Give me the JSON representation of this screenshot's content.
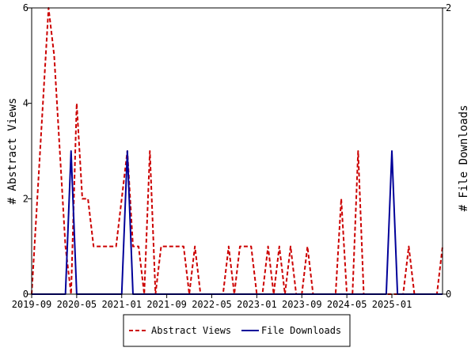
{
  "chart_data": {
    "type": "line",
    "x_ticks": [
      "2019-09",
      "2020-05",
      "2021-01",
      "2021-09",
      "2022-05",
      "2023-01",
      "2023-09",
      "2024-05",
      "2025-01"
    ],
    "x_range": [
      "2019-09",
      "2025-10"
    ],
    "y_left": {
      "label": "# Abstract Views",
      "ticks": [
        "0",
        "2",
        "4",
        "6"
      ],
      "range": [
        0,
        6
      ]
    },
    "y_right": {
      "label": "# File Downloads",
      "ticks": [
        "0",
        "2"
      ],
      "range": [
        0,
        2
      ]
    },
    "legend_position": "bottom-center",
    "grid": false,
    "series": [
      {
        "name": "Abstract Views",
        "axis": "left",
        "color": "#cc0000",
        "style": "dashed",
        "points": [
          [
            "2019-09",
            0
          ],
          [
            "2019-10",
            2
          ],
          [
            "2019-11",
            4
          ],
          [
            "2019-12",
            6
          ],
          [
            "2020-01",
            5
          ],
          [
            "2020-02",
            3
          ],
          [
            "2020-03",
            1
          ],
          [
            "2020-04",
            0
          ],
          [
            "2020-05",
            4
          ],
          [
            "2020-06",
            2
          ],
          [
            "2020-07",
            2
          ],
          [
            "2020-08",
            1
          ],
          [
            "2020-09",
            1
          ],
          [
            "2020-10",
            1
          ],
          [
            "2020-11",
            1
          ],
          [
            "2020-12",
            1
          ],
          [
            "2021-01",
            2
          ],
          [
            "2021-02",
            3
          ],
          [
            "2021-03",
            1
          ],
          [
            "2021-04",
            1
          ],
          [
            "2021-05",
            0
          ],
          [
            "2021-06",
            3
          ],
          [
            "2021-07",
            0
          ],
          [
            "2021-08",
            1
          ],
          [
            "2021-09",
            1
          ],
          [
            "2021-10",
            1
          ],
          [
            "2021-11",
            1
          ],
          [
            "2021-12",
            1
          ],
          [
            "2022-01",
            0
          ],
          [
            "2022-02",
            1
          ],
          [
            "2022-03",
            0
          ],
          [
            "2022-04",
            0
          ],
          [
            "2022-05",
            0
          ],
          [
            "2022-06",
            0
          ],
          [
            "2022-07",
            0
          ],
          [
            "2022-08",
            1
          ],
          [
            "2022-09",
            0
          ],
          [
            "2022-10",
            1
          ],
          [
            "2022-11",
            1
          ],
          [
            "2022-12",
            1
          ],
          [
            "2023-01",
            0
          ],
          [
            "2023-02",
            0
          ],
          [
            "2023-03",
            1
          ],
          [
            "2023-04",
            0
          ],
          [
            "2023-05",
            1
          ],
          [
            "2023-06",
            0
          ],
          [
            "2023-07",
            1
          ],
          [
            "2023-08",
            0
          ],
          [
            "2023-09",
            0
          ],
          [
            "2023-10",
            1
          ],
          [
            "2023-11",
            0
          ],
          [
            "2023-12",
            0
          ],
          [
            "2024-01",
            0
          ],
          [
            "2024-02",
            0
          ],
          [
            "2024-03",
            0
          ],
          [
            "2024-04",
            2
          ],
          [
            "2024-05",
            0
          ],
          [
            "2024-06",
            0
          ],
          [
            "2024-07",
            3
          ],
          [
            "2024-08",
            0
          ],
          [
            "2024-09",
            0
          ],
          [
            "2024-10",
            0
          ],
          [
            "2024-11",
            0
          ],
          [
            "2024-12",
            0
          ],
          [
            "2025-01",
            0
          ],
          [
            "2025-02",
            0
          ],
          [
            "2025-03",
            0
          ],
          [
            "2025-04",
            1
          ],
          [
            "2025-05",
            0
          ],
          [
            "2025-06",
            0
          ],
          [
            "2025-07",
            0
          ],
          [
            "2025-08",
            0
          ],
          [
            "2025-09",
            0
          ],
          [
            "2025-10",
            1
          ]
        ]
      },
      {
        "name": "File Downloads",
        "axis": "right",
        "color": "#000099",
        "style": "solid",
        "points": [
          [
            "2019-09",
            0
          ],
          [
            "2019-10",
            0
          ],
          [
            "2019-11",
            0
          ],
          [
            "2019-12",
            0
          ],
          [
            "2020-01",
            0
          ],
          [
            "2020-02",
            0
          ],
          [
            "2020-03",
            0
          ],
          [
            "2020-04",
            1
          ],
          [
            "2020-05",
            0
          ],
          [
            "2020-06",
            0
          ],
          [
            "2020-07",
            0
          ],
          [
            "2020-08",
            0
          ],
          [
            "2020-09",
            0
          ],
          [
            "2020-10",
            0
          ],
          [
            "2020-11",
            0
          ],
          [
            "2020-12",
            0
          ],
          [
            "2021-01",
            0
          ],
          [
            "2021-02",
            1
          ],
          [
            "2021-03",
            0
          ],
          [
            "2021-04",
            0
          ],
          [
            "2021-05",
            0
          ],
          [
            "2021-06",
            0
          ],
          [
            "2021-07",
            0
          ],
          [
            "2021-08",
            0
          ],
          [
            "2021-09",
            0
          ],
          [
            "2021-10",
            0
          ],
          [
            "2021-11",
            0
          ],
          [
            "2021-12",
            0
          ],
          [
            "2022-01",
            0
          ],
          [
            "2022-02",
            0
          ],
          [
            "2022-03",
            0
          ],
          [
            "2022-04",
            0
          ],
          [
            "2022-05",
            0
          ],
          [
            "2022-06",
            0
          ],
          [
            "2022-07",
            0
          ],
          [
            "2022-08",
            0
          ],
          [
            "2022-09",
            0
          ],
          [
            "2022-10",
            0
          ],
          [
            "2022-11",
            0
          ],
          [
            "2022-12",
            0
          ],
          [
            "2023-01",
            0
          ],
          [
            "2023-02",
            0
          ],
          [
            "2023-03",
            0
          ],
          [
            "2023-04",
            0
          ],
          [
            "2023-05",
            0
          ],
          [
            "2023-06",
            0
          ],
          [
            "2023-07",
            0
          ],
          [
            "2023-08",
            0
          ],
          [
            "2023-09",
            0
          ],
          [
            "2023-10",
            0
          ],
          [
            "2023-11",
            0
          ],
          [
            "2023-12",
            0
          ],
          [
            "2024-01",
            0
          ],
          [
            "2024-02",
            0
          ],
          [
            "2024-03",
            0
          ],
          [
            "2024-04",
            0
          ],
          [
            "2024-05",
            0
          ],
          [
            "2024-06",
            0
          ],
          [
            "2024-07",
            0
          ],
          [
            "2024-08",
            0
          ],
          [
            "2024-09",
            0
          ],
          [
            "2024-10",
            0
          ],
          [
            "2024-11",
            0
          ],
          [
            "2024-12",
            0
          ],
          [
            "2025-01",
            1
          ],
          [
            "2025-02",
            0
          ],
          [
            "2025-03",
            0
          ],
          [
            "2025-04",
            0
          ],
          [
            "2025-05",
            0
          ],
          [
            "2025-06",
            0
          ],
          [
            "2025-07",
            0
          ],
          [
            "2025-08",
            0
          ],
          [
            "2025-09",
            0
          ],
          [
            "2025-10",
            0
          ]
        ]
      }
    ]
  }
}
